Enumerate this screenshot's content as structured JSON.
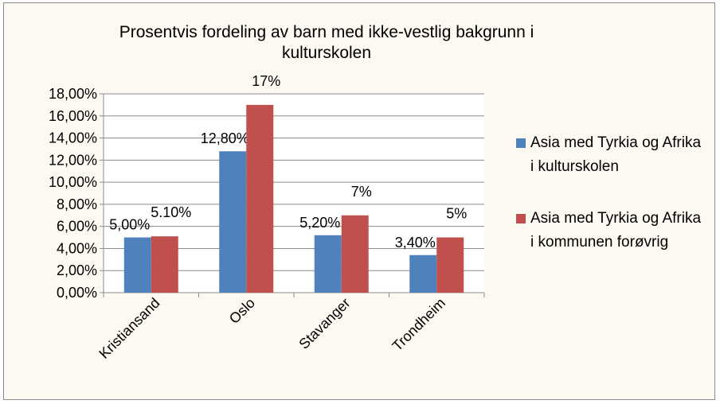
{
  "chart_data": {
    "type": "bar",
    "title": "Prosentvis fordeling av barn med ikke-vestlig bakgrunn i kulturskolen",
    "categories": [
      "Kristiansand",
      "Oslo",
      "Stavanger",
      "Trondheim"
    ],
    "series": [
      {
        "name": "Asia med Tyrkia og Afrika i kulturskolen",
        "color": "#4f81bd",
        "values": [
          5.0,
          12.8,
          5.2,
          3.4
        ],
        "value_labels": [
          "5,00%",
          "12,80%",
          "5,20%",
          "3,40%"
        ]
      },
      {
        "name": "Asia med Tyrkia og Afrika i kommunen forøvrig",
        "color": "#c0504d",
        "values": [
          5.1,
          17,
          7,
          5
        ],
        "value_labels": [
          "5.10%",
          "17%",
          "7%",
          "5%"
        ]
      }
    ],
    "ylim": [
      0,
      18
    ],
    "yticks": [
      {
        "value": 0,
        "label": "0,00%"
      },
      {
        "value": 2,
        "label": "2,00%"
      },
      {
        "value": 4,
        "label": "4,00%"
      },
      {
        "value": 6,
        "label": "6,00%"
      },
      {
        "value": 8,
        "label": "8,00%"
      },
      {
        "value": 10,
        "label": "10,00%"
      },
      {
        "value": 12,
        "label": "12,00%"
      },
      {
        "value": 14,
        "label": "14,00%"
      },
      {
        "value": 16,
        "label": "16,00%"
      },
      {
        "value": 18,
        "label": "18,00%"
      }
    ],
    "grid": true,
    "legend": "right"
  }
}
